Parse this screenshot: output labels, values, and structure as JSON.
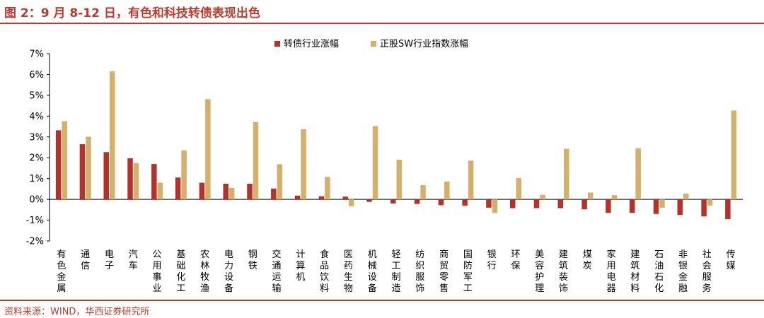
{
  "title": "图 2：9 月 8-12 日，有色和科技转债表现出色",
  "source": "资料来源：WIND，华西证券研究所",
  "colors": {
    "accent": "#c0392b",
    "series1": "#b5322a",
    "series2": "#d4b06a"
  },
  "chart_data": {
    "type": "bar",
    "ylim": [
      -2,
      7
    ],
    "yticks": [
      "-2%",
      "-1%",
      "0%",
      "1%",
      "2%",
      "3%",
      "4%",
      "5%",
      "6%",
      "7%"
    ],
    "legend_position": "top-center",
    "categories": [
      "有色金属",
      "通信",
      "电子",
      "汽车",
      "公用事业",
      "基础化工",
      "农林牧渔",
      "电力设备",
      "钢铁",
      "交通运输",
      "计算机",
      "食品饮料",
      "医药生物",
      "机械设备",
      "轻工制造",
      "纺织服饰",
      "商贸零售",
      "国防军工",
      "银行",
      "环保",
      "美容护理",
      "建筑装饰",
      "煤炭",
      "家用电器",
      "建筑材料",
      "石油石化",
      "非银金融",
      "社会服务",
      "传媒"
    ],
    "series": [
      {
        "name": "转债行业涨幅",
        "values": [
          3.32,
          2.65,
          2.27,
          1.98,
          1.7,
          1.05,
          0.8,
          0.75,
          0.75,
          0.52,
          0.18,
          0.15,
          0.13,
          -0.12,
          -0.2,
          -0.22,
          -0.28,
          -0.3,
          -0.4,
          -0.42,
          -0.42,
          -0.42,
          -0.48,
          -0.65,
          -0.65,
          -0.7,
          -0.75,
          -0.82,
          -0.95
        ]
      },
      {
        "name": "正股SW行业指数涨幅",
        "values": [
          3.76,
          3.01,
          6.15,
          1.74,
          0.8,
          2.36,
          4.82,
          0.55,
          3.71,
          1.69,
          3.37,
          1.08,
          -0.33,
          3.52,
          1.9,
          0.68,
          0.86,
          1.86,
          -0.65,
          1.02,
          0.22,
          2.43,
          0.33,
          0.2,
          2.46,
          -0.4,
          0.28,
          -0.3,
          4.27
        ]
      }
    ]
  }
}
